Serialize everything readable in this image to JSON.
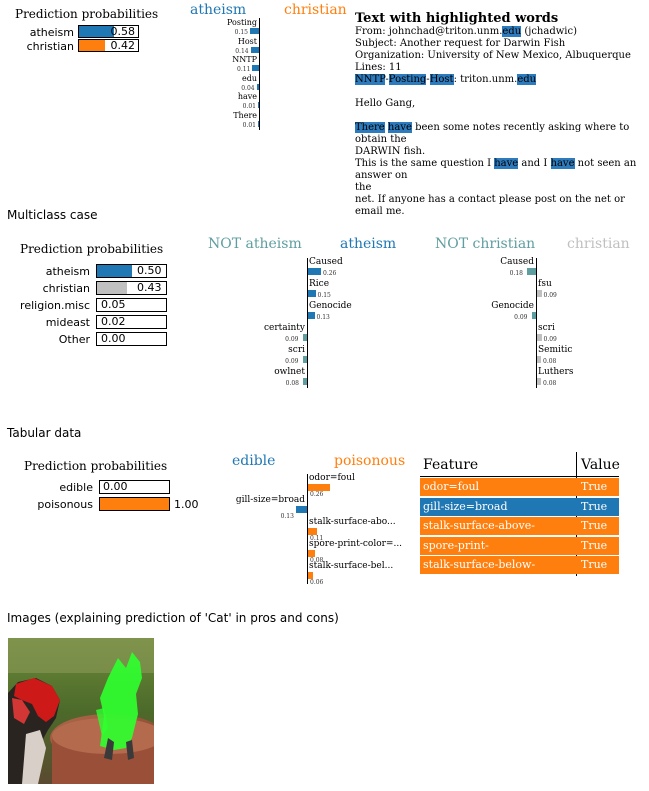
{
  "colors": {
    "blue": "#1f77b4",
    "orange": "#ff7f0e",
    "teal": "#5f9ea0",
    "gray": "#c0c0c0",
    "highlight": "#2d7bbd"
  },
  "sec1": {
    "pp_title": "Prediction probabilities",
    "probs": [
      {
        "label": "atheism",
        "value": "0.58",
        "p": 0.58
      },
      {
        "label": "christian",
        "value": "0.42",
        "p": 0.42
      }
    ],
    "head_left": "atheism",
    "head_right": "christian",
    "features": [
      {
        "name": "Posting",
        "weight": "0.15",
        "w": 0.15
      },
      {
        "name": "Host",
        "weight": "0.14",
        "w": 0.14
      },
      {
        "name": "NNTP",
        "weight": "0.11",
        "w": 0.11
      },
      {
        "name": "edu",
        "weight": "0.04",
        "w": 0.04
      },
      {
        "name": "have",
        "weight": "0.01",
        "w": 0.01
      },
      {
        "name": "There",
        "weight": "0.01",
        "w": 0.01
      }
    ],
    "text_title": "Text with highlighted words",
    "line_from_a": "From: johnchad@triton.unm.",
    "line_from_hl": "edu",
    "line_from_b": " (jchadwic)",
    "line_subject": "Subject: Another request for Darwin Fish",
    "line_org": "Organization: University of New Mexico, Albuquerque",
    "line_lines": "Lines: 11",
    "line_nntp": [
      "NNTP",
      "-",
      "Posting",
      "-",
      "Host",
      ": triton.unm.",
      "edu"
    ],
    "hello": "Hello Gang,",
    "p1_there": "There",
    "p1_have": "have",
    "p1_rest": " been some notes recently asking where to obtain the",
    "p1_l2": "DARWIN fish.",
    "p2_a": "This is the same question I ",
    "p2_have1": "have",
    "p2_b": " and I ",
    "p2_have2": "have",
    "p2_c": " not seen an answer on",
    "p2_l2": "the",
    "p3": "net. If anyone has a contact please post on the net or email me."
  },
  "sec2": {
    "title": "Multiclass case",
    "pp_title": "Prediction probabilities",
    "probs": [
      {
        "label": "atheism",
        "value": "0.50",
        "p": 0.5,
        "color": "#1f77b4"
      },
      {
        "label": "christian",
        "value": "0.43",
        "p": 0.43,
        "color": "#c0c0c0"
      },
      {
        "label": "religion.misc",
        "value": "0.05",
        "p": 0.05,
        "color": "#ffffff"
      },
      {
        "label": "mideast",
        "value": "0.02",
        "p": 0.02,
        "color": "#ffffff"
      },
      {
        "label": "Other",
        "value": "0.00",
        "p": 0.0,
        "color": "#ffffff"
      }
    ],
    "h1_not": "NOT atheism",
    "h1": "atheism",
    "h2_not": "NOT christian",
    "h2": "christian",
    "left_feats": [
      {
        "name": "Caused",
        "weight": "0.26",
        "side": "pos"
      },
      {
        "name": "Rice",
        "weight": "0.15",
        "side": "pos"
      },
      {
        "name": "Genocide",
        "weight": "0.13",
        "side": "pos"
      },
      {
        "name": "certainty",
        "weight": "0.09",
        "side": "neg"
      },
      {
        "name": "scri",
        "weight": "0.09",
        "side": "neg"
      },
      {
        "name": "owlnet",
        "weight": "0.08",
        "side": "neg"
      }
    ],
    "right_feats": [
      {
        "name": "Caused",
        "weight": "0.18",
        "side": "neg"
      },
      {
        "name": "fsu",
        "weight": "0.09",
        "side": "pos"
      },
      {
        "name": "Genocide",
        "weight": "0.09",
        "side": "neg"
      },
      {
        "name": "scri",
        "weight": "0.09",
        "side": "pos"
      },
      {
        "name": "Semitic",
        "weight": "0.08",
        "side": "pos"
      },
      {
        "name": "Luthers",
        "weight": "0.08",
        "side": "pos"
      }
    ]
  },
  "sec3": {
    "title": "Tabular data",
    "pp_title": "Prediction probabilities",
    "probs": [
      {
        "label": "edible",
        "value": "0.00",
        "p": 0.0
      },
      {
        "label": "poisonous",
        "value": "1.00",
        "p": 1.0
      }
    ],
    "h_left": "edible",
    "h_right": "poisonous",
    "features": [
      {
        "name": "odor=foul",
        "weight": "0.26",
        "side": "pos"
      },
      {
        "name": "gill-size=broad",
        "weight": "0.13",
        "side": "neg"
      },
      {
        "name": "stalk-surface-abo...",
        "weight": "0.11",
        "side": "pos"
      },
      {
        "name": "spore-print-color=...",
        "weight": "0.08",
        "side": "pos"
      },
      {
        "name": "stalk-surface-bel...",
        "weight": "0.06",
        "side": "pos"
      }
    ],
    "table_head_feature": "Feature",
    "table_head_value": "Value",
    "rows": [
      {
        "feature": "odor=foul",
        "value": "True",
        "color": "#ff7f0e"
      },
      {
        "feature": "gill-size=broad",
        "value": "True",
        "color": "#1f77b4"
      },
      {
        "feature": "stalk-surface-above-ring=silky",
        "value": "True",
        "color": "#ff7f0e"
      },
      {
        "feature": "spore-print-color=chocolate",
        "value": "True",
        "color": "#ff7f0e"
      },
      {
        "feature": "stalk-surface-below-ring=silky",
        "value": "True",
        "color": "#ff7f0e"
      }
    ]
  },
  "sec4": {
    "title": "Images (explaining prediction of 'Cat' in pros and cons)"
  }
}
